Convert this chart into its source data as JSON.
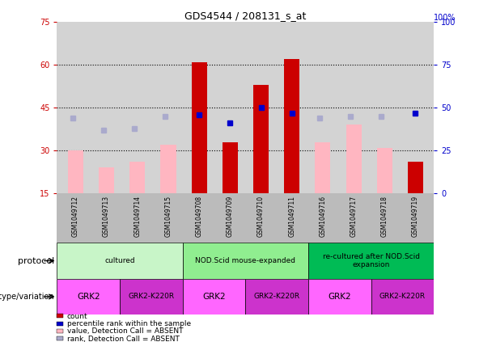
{
  "title": "GDS4544 / 208131_s_at",
  "samples": [
    "GSM1049712",
    "GSM1049713",
    "GSM1049714",
    "GSM1049715",
    "GSM1049708",
    "GSM1049709",
    "GSM1049710",
    "GSM1049711",
    "GSM1049716",
    "GSM1049717",
    "GSM1049718",
    "GSM1049719"
  ],
  "count_values": [
    null,
    null,
    null,
    null,
    61.0,
    33.0,
    53.0,
    62.0,
    null,
    null,
    null,
    26.0
  ],
  "percentile_values": [
    null,
    null,
    null,
    null,
    46.0,
    41.0,
    50.0,
    47.0,
    null,
    null,
    null,
    47.0
  ],
  "absent_value_values": [
    30.0,
    24.0,
    26.0,
    32.0,
    null,
    null,
    null,
    null,
    33.0,
    39.0,
    31.0,
    null
  ],
  "absent_rank_values": [
    44.0,
    37.0,
    38.0,
    45.0,
    null,
    null,
    null,
    null,
    44.0,
    45.0,
    45.0,
    null
  ],
  "ylim_left": [
    15,
    75
  ],
  "ylim_right": [
    0,
    100
  ],
  "yticks_left": [
    15,
    30,
    45,
    60,
    75
  ],
  "yticks_right": [
    0,
    25,
    50,
    75,
    100
  ],
  "protocol_groups": [
    {
      "label": "cultured",
      "start": 0,
      "end": 4
    },
    {
      "label": "NOD.Scid mouse-expanded",
      "start": 4,
      "end": 8
    },
    {
      "label": "re-cultured after NOD.Scid\nexpansion",
      "start": 8,
      "end": 12
    }
  ],
  "protocol_colors": [
    "#C8F5C8",
    "#90EE90",
    "#00BB55"
  ],
  "genotype_groups": [
    {
      "label": "GRK2",
      "start": 0,
      "end": 2
    },
    {
      "label": "GRK2-K220R",
      "start": 2,
      "end": 4
    },
    {
      "label": "GRK2",
      "start": 4,
      "end": 6
    },
    {
      "label": "GRK2-K220R",
      "start": 6,
      "end": 8
    },
    {
      "label": "GRK2",
      "start": 8,
      "end": 10
    },
    {
      "label": "GRK2-K220R",
      "start": 10,
      "end": 12
    }
  ],
  "genotype_colors": [
    "#FF66FF",
    "#CC33CC",
    "#FF66FF",
    "#CC33CC",
    "#FF66FF",
    "#CC33CC"
  ],
  "bar_width": 0.5,
  "count_color": "#CC0000",
  "percentile_color": "#0000CC",
  "absent_value_color": "#FFB6C1",
  "absent_rank_color": "#AAAACC",
  "left_axis_color": "#CC0000",
  "right_axis_color": "#0000CC",
  "background_color": "#D3D3D3",
  "sample_bg_color": "#BBBBBB",
  "legend_items": [
    {
      "color": "#CC0000",
      "label": "count"
    },
    {
      "color": "#0000CC",
      "label": "percentile rank within the sample"
    },
    {
      "color": "#FFB6C1",
      "label": "value, Detection Call = ABSENT"
    },
    {
      "color": "#AAAACC",
      "label": "rank, Detection Call = ABSENT"
    }
  ]
}
